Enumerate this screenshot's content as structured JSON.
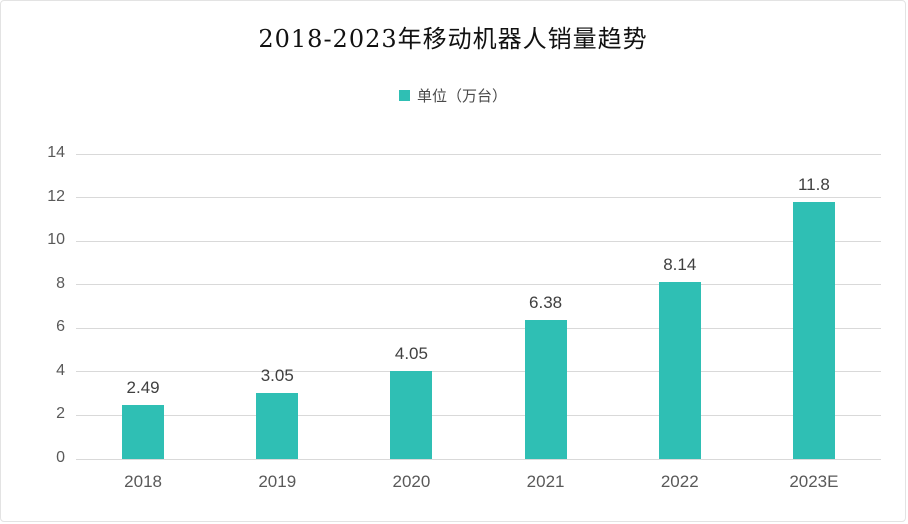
{
  "chart_data": {
    "type": "bar",
    "title": "2018-2023年移动机器人销量趋势",
    "legend": "单位（万台）",
    "categories": [
      "2018",
      "2019",
      "2020",
      "2021",
      "2022",
      "2023E"
    ],
    "values": [
      2.49,
      3.05,
      4.05,
      6.38,
      8.14,
      11.8
    ],
    "data_labels": [
      "2.49",
      "3.05",
      "4.05",
      "6.38",
      "8.14",
      "11.8"
    ],
    "xlabel": "",
    "ylabel": "",
    "ylim": [
      0,
      14
    ],
    "ytick_step": 2,
    "ytick_labels": [
      "0",
      "2",
      "4",
      "6",
      "8",
      "10",
      "12",
      "14"
    ],
    "grid": "on",
    "legend_position": "top-center",
    "colors": {
      "bar": "#2fbfb4",
      "grid": "#d9d9d9",
      "axis_label": "#595959",
      "data_label": "#404040",
      "title": "#111111",
      "card_border": "#e3e3e3",
      "background": "#ffffff"
    }
  }
}
